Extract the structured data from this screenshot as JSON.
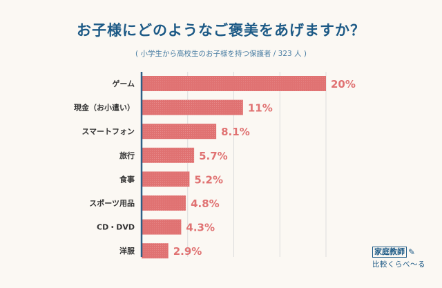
{
  "title": "お子様にどのようなご褒美をあげますか？",
  "subtitle": "( 小学生から高校生のお子様を持つ保護者 / 323 人 )",
  "logo": {
    "main": "家庭教師",
    "sub": "比較くらべ～る",
    "icon": "pencil-icon"
  },
  "colors": {
    "bar": "#e07272",
    "label": "#e07272",
    "axis": "#2c5f86",
    "grid": "#dcdcdc",
    "title": "#1d5a86"
  },
  "chart_data": {
    "type": "bar",
    "orientation": "horizontal",
    "categories": [
      "ゲーム",
      "現金（お小遣い）",
      "スマートフォン",
      "旅行",
      "食事",
      "スポーツ用品",
      "CD・DVD",
      "洋服"
    ],
    "values": [
      20,
      11,
      8.1,
      5.7,
      5.2,
      4.8,
      4.3,
      2.9
    ],
    "value_labels": [
      "20%",
      "11%",
      "8.1%",
      "5.7%",
      "5.2%",
      "4.8%",
      "4.3%",
      "2.9%"
    ],
    "unit": "%",
    "xlim": [
      0,
      20
    ],
    "grid": true,
    "title": "お子様にどのようなご褒美をあげますか？",
    "subtitle": "( 小学生から高校生のお子様を持つ保護者 / 323 人 )"
  }
}
